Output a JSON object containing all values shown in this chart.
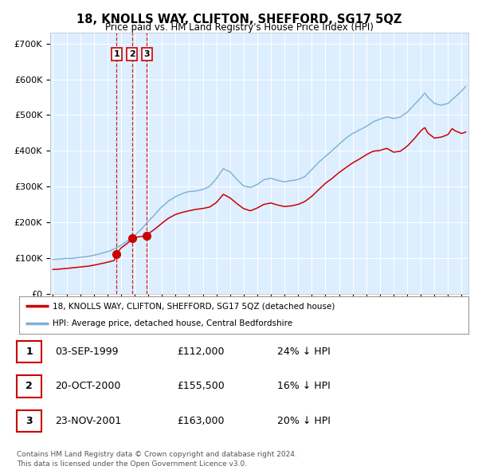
{
  "title": "18, KNOLLS WAY, CLIFTON, SHEFFORD, SG17 5QZ",
  "subtitle": "Price paid vs. HM Land Registry's House Price Index (HPI)",
  "legend_red": "18, KNOLLS WAY, CLIFTON, SHEFFORD, SG17 5QZ (detached house)",
  "legend_blue": "HPI: Average price, detached house, Central Bedfordshire",
  "footer": "Contains HM Land Registry data © Crown copyright and database right 2024.\nThis data is licensed under the Open Government Licence v3.0.",
  "transactions": [
    {
      "label": "1",
      "date": "03-SEP-1999",
      "price": "£112,000",
      "pct": "24% ↓ HPI",
      "x": 1999.67
    },
    {
      "label": "2",
      "date": "20-OCT-2000",
      "price": "£155,500",
      "pct": "16% ↓ HPI",
      "x": 2000.8
    },
    {
      "label": "3",
      "date": "23-NOV-2001",
      "price": "£163,000",
      "pct": "20% ↓ HPI",
      "x": 2001.89
    }
  ],
  "marker_prices": [
    112000,
    155500,
    163000
  ],
  "vline_color": "#cc0000",
  "marker_color": "#cc0000",
  "red_line_color": "#cc0000",
  "blue_line_color": "#7ab0d4",
  "plot_bg": "#ddeeff",
  "ylim": [
    0,
    730000
  ],
  "xlim_start": 1994.8,
  "xlim_end": 2025.5,
  "yticks": [
    0,
    100000,
    200000,
    300000,
    400000,
    500000,
    600000,
    700000
  ],
  "ytick_labels": [
    "£0",
    "£100K",
    "£200K",
    "£300K",
    "£400K",
    "£500K",
    "£600K",
    "£700K"
  ]
}
